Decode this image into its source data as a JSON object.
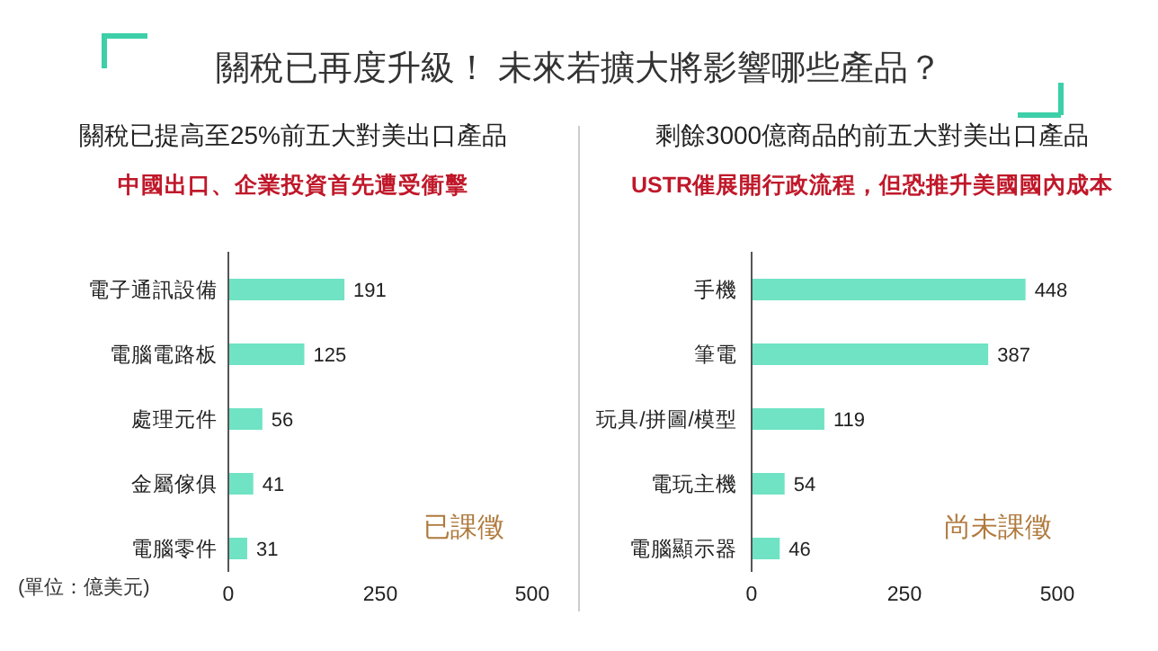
{
  "chart_data": [
    {
      "type": "bar",
      "orientation": "horizontal",
      "title": "關稅已提高至25%前五大對美出口產品",
      "subtitle": "中國出口、企業投資首先遭受衝擊",
      "annotations": [
        "關稅已再度升級！ 未來若擴大將影響哪些產品？",
        "已課徵",
        "(單位：億美元)"
      ],
      "categories": [
        "電子通訊設備",
        "電腦電路板",
        "處理元件",
        "金屬傢俱",
        "電腦零件"
      ],
      "values": [
        191,
        125,
        56,
        41,
        31
      ],
      "color": "#6fe3c4",
      "xlim": [
        0,
        500
      ],
      "xticks": [
        0,
        250,
        500
      ],
      "data_labels": true,
      "grid": false
    },
    {
      "type": "bar",
      "orientation": "horizontal",
      "title": "剩餘3000億商品的前五大對美出口產品",
      "subtitle": "USTR催展開行政流程，但恐推升美國國內成本",
      "annotations": [
        "尚未課徵"
      ],
      "categories": [
        "手機",
        "筆電",
        "玩具/拼圖/模型",
        "電玩主機",
        "電腦顯示器"
      ],
      "values": [
        448,
        387,
        119,
        54,
        46
      ],
      "color": "#6fe3c4",
      "xlim": [
        0,
        500
      ],
      "xticks": [
        0,
        250,
        500
      ],
      "data_labels": true,
      "grid": false
    }
  ]
}
